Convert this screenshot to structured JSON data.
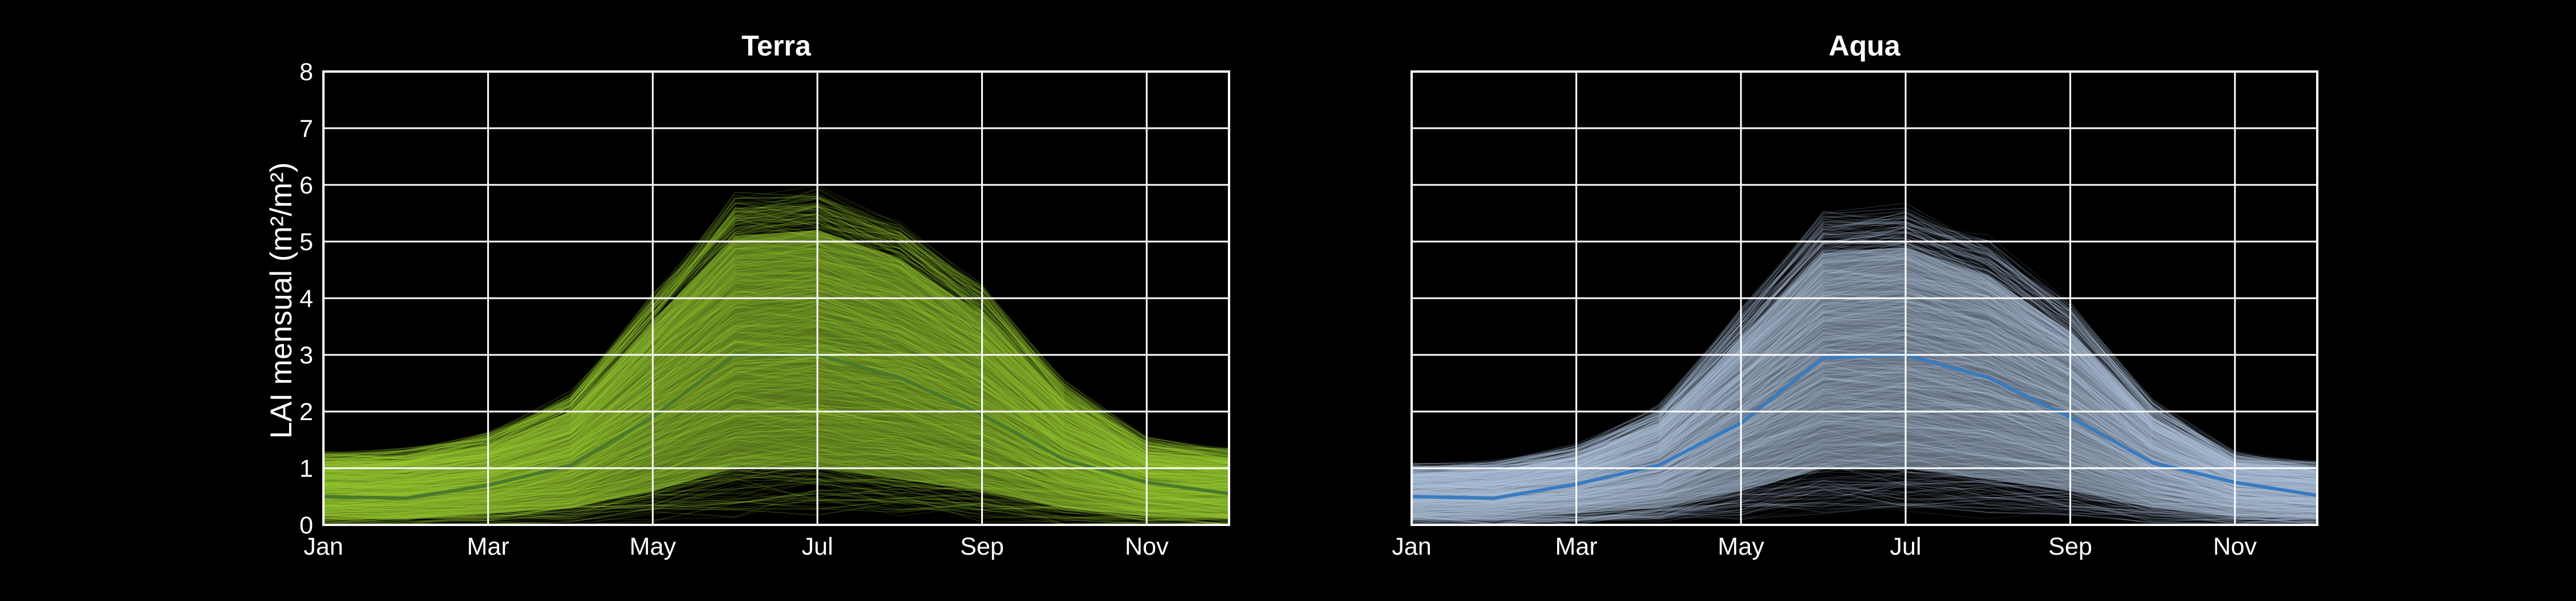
{
  "figure": {
    "background": "#000000",
    "grid_color": "#ffffff",
    "ylabel": "LAI mensual (m²/m²)"
  },
  "chart_data": [
    {
      "type": "line",
      "title": "Terra",
      "xlabel": "",
      "ylabel": "LAI mensual (m²/m²)",
      "x": [
        "Jan",
        "Feb",
        "Mar",
        "Apr",
        "May",
        "Jun",
        "Jul",
        "Aug",
        "Sep",
        "Oct",
        "Nov",
        "Dec"
      ],
      "xticks": [
        "Jan",
        "Mar",
        "May",
        "Jul",
        "Sep",
        "Nov"
      ],
      "yticks": [
        0,
        1,
        2,
        3,
        4,
        5,
        6,
        7,
        8
      ],
      "ylim": [
        0,
        8
      ],
      "grid": true,
      "series": [
        {
          "role": "median",
          "color": "#4a7a2a",
          "values": [
            0.5,
            0.47,
            0.7,
            1.05,
            1.9,
            3.0,
            3.0,
            2.6,
            1.95,
            1.15,
            0.75,
            0.55
          ]
        },
        {
          "role": "individual-series-band",
          "color": "#9acd32",
          "low": [
            0.1,
            0.1,
            0.2,
            0.3,
            0.6,
            1.0,
            1.0,
            0.8,
            0.6,
            0.3,
            0.15,
            0.1
          ],
          "high": [
            1.1,
            1.15,
            1.4,
            2.0,
            3.6,
            5.1,
            5.2,
            4.7,
            3.7,
            2.2,
            1.3,
            1.15
          ]
        }
      ]
    },
    {
      "type": "line",
      "title": "Aqua",
      "xlabel": "",
      "ylabel": "",
      "x": [
        "Jan",
        "Feb",
        "Mar",
        "Apr",
        "May",
        "Jun",
        "Jul",
        "Aug",
        "Sep",
        "Oct",
        "Nov",
        "Dec"
      ],
      "xticks": [
        "Jan",
        "Mar",
        "May",
        "Jul",
        "Sep",
        "Nov"
      ],
      "yticks": [
        0,
        1,
        2,
        3,
        4,
        5,
        6,
        7,
        8
      ],
      "ylim": [
        0,
        8
      ],
      "grid": true,
      "series": [
        {
          "role": "median",
          "color": "#3a7bbf",
          "values": [
            0.5,
            0.47,
            0.72,
            1.05,
            1.8,
            2.95,
            3.0,
            2.6,
            1.9,
            1.1,
            0.75,
            0.52
          ]
        },
        {
          "role": "individual-series-band",
          "color": "#b0c4de",
          "low": [
            0.1,
            0.1,
            0.2,
            0.3,
            0.6,
            1.0,
            1.0,
            0.8,
            0.6,
            0.3,
            0.15,
            0.1
          ],
          "high": [
            0.9,
            0.95,
            1.2,
            1.8,
            3.3,
            4.8,
            4.9,
            4.4,
            3.4,
            1.9,
            1.1,
            0.95
          ]
        }
      ]
    }
  ]
}
